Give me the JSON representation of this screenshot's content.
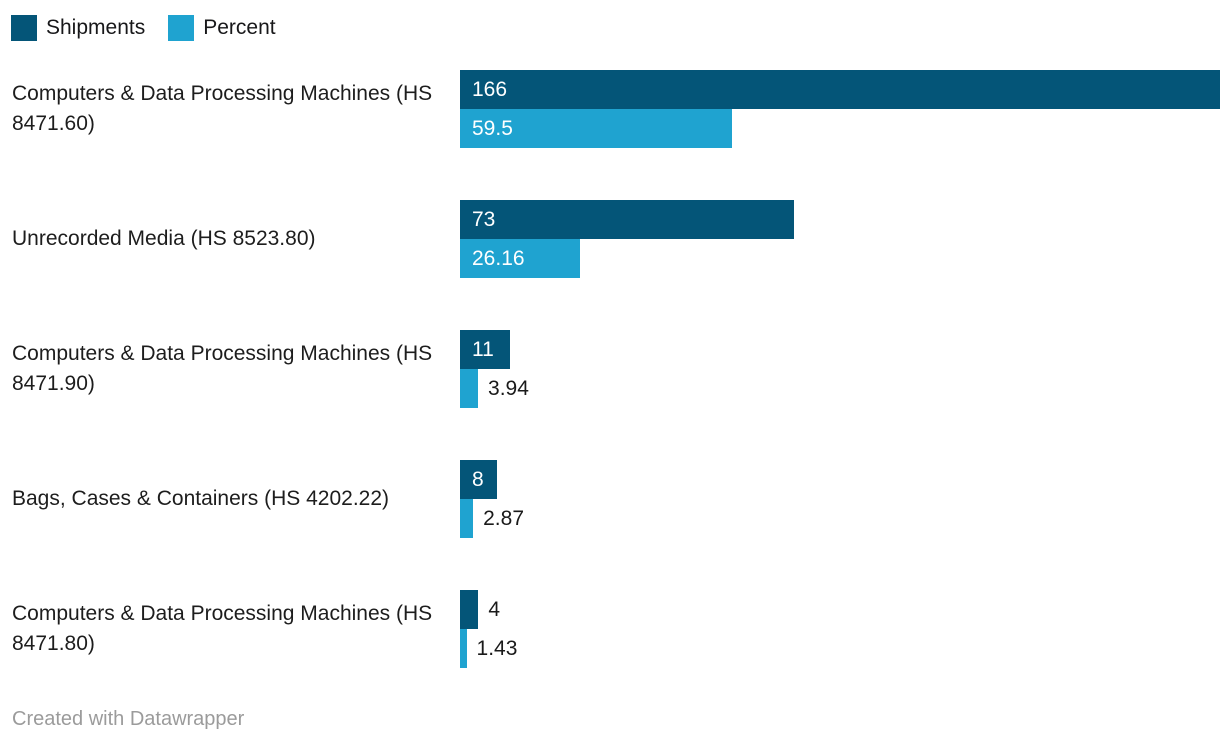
{
  "legend": [
    {
      "label": "Shipments",
      "color": "#045578"
    },
    {
      "label": "Percent",
      "color": "#1fa3d0"
    }
  ],
  "footer": "Created with Datawrapper",
  "chart_data": {
    "type": "bar",
    "orientation": "horizontal",
    "grouped": true,
    "title": "",
    "xlabel": "",
    "ylabel": "",
    "xlim": [
      0,
      166
    ],
    "grid": false,
    "legend_position": "top-left",
    "value_labels": true,
    "categories": [
      "Computers & Data Processing Machines (HS 8471.60)",
      "Unrecorded Media (HS 8523.80)",
      "Computers & Data Processing Machines (HS 8471.90)",
      "Bags, Cases & Containers (HS 4202.22)",
      "Computers & Data Processing Machines (HS 8471.80)"
    ],
    "series": [
      {
        "name": "Shipments",
        "color": "#045578",
        "values": [
          166,
          73,
          11,
          8,
          4
        ],
        "labels": [
          "166",
          "73",
          "11",
          "8",
          "4"
        ]
      },
      {
        "name": "Percent",
        "color": "#1fa3d0",
        "values": [
          59.5,
          26.16,
          3.94,
          2.87,
          1.43
        ],
        "labels": [
          "59.5",
          "26.16",
          "3.94",
          "2.87",
          "1.43"
        ]
      }
    ],
    "attribution": "Created with Datawrapper"
  }
}
